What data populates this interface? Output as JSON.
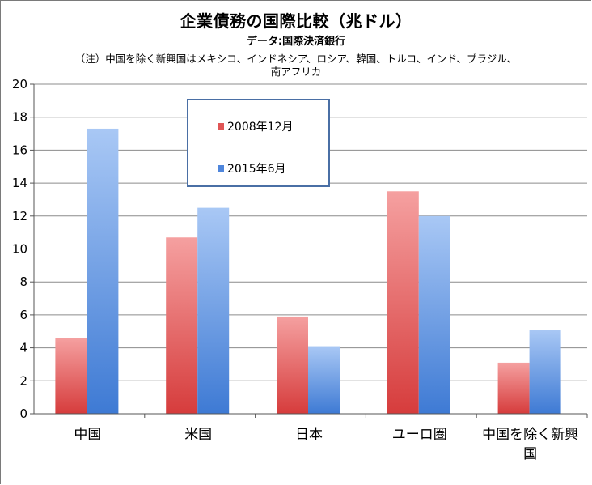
{
  "title": "企業債務の国際比較（兆ドル）",
  "source": "データ:国際決済銀行",
  "note_line1": "（注）中国を除く新興国はメキシコ、インドネシア、ロシア、韓国、トルコ、インド、ブラジル、",
  "note_line2": "南アフリカ",
  "chart_data": {
    "type": "bar",
    "title": "企業債務の国際比較（兆ドル）",
    "xlabel": "",
    "ylabel": "",
    "ylim": [
      0,
      20
    ],
    "yticks": [
      "0",
      "2",
      "4",
      "6",
      "8",
      "10",
      "12",
      "14",
      "16",
      "18",
      "20"
    ],
    "categories": [
      "中国",
      "米国",
      "日本",
      "ユーロ圏",
      "中国を除く新興国"
    ],
    "category_display": [
      [
        "中国"
      ],
      [
        "米国"
      ],
      [
        "日本"
      ],
      [
        "ユーロ圏"
      ],
      [
        "中国を除く新興",
        "国"
      ]
    ],
    "series": [
      {
        "name": "2008年12月",
        "values": [
          4.6,
          10.7,
          5.9,
          13.5,
          3.1
        ],
        "color_top": "#f5a0a0",
        "color_bottom": "#d63c3c"
      },
      {
        "name": "2015年6月",
        "values": [
          17.3,
          12.5,
          4.1,
          12.0,
          5.1
        ],
        "color_top": "#a9c8f5",
        "color_bottom": "#3e7ad4"
      }
    ],
    "grid": true,
    "legend_position": "top-left inside plot"
  },
  "legend": {
    "item1": "2008年12月",
    "item2": "2015年6月",
    "color1": "#e05555",
    "color2": "#4f86dc"
  }
}
